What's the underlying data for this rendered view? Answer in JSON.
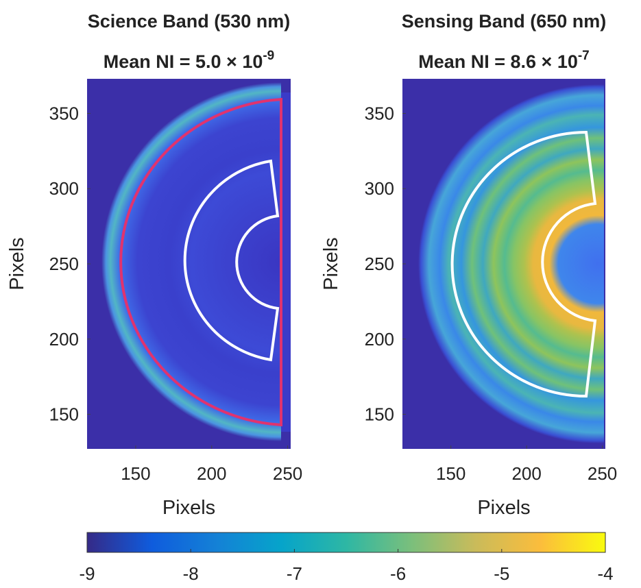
{
  "chart_data": [
    {
      "type": "heatmap",
      "title": "Science Band (530 nm)",
      "subtitle": "Mean NI = 5.0 × 10",
      "subtitle_exponent": "-9",
      "x_label": "Pixels",
      "y_label": "Pixels",
      "xlim": [
        118,
        252
      ],
      "xticks": [
        150,
        200,
        250
      ],
      "ylim": [
        127,
        373
      ],
      "yticks": [
        150,
        200,
        250,
        300,
        350
      ]
    },
    {
      "type": "heatmap",
      "title": "Sensing Band (650 nm)",
      "subtitle": "Mean NI = 8.6 × 10",
      "subtitle_exponent": "-7",
      "x_label": "Pixels",
      "y_label": "Pixels",
      "xlim": [
        118,
        252
      ],
      "xticks": [
        150,
        200,
        250
      ],
      "ylim": [
        127,
        373
      ],
      "yticks": [
        150,
        200,
        250,
        300,
        350
      ]
    },
    {
      "type": "colorbar",
      "xlim": [
        -9,
        -4
      ],
      "xticks": [
        -9,
        -8,
        -7,
        -6,
        -5,
        -4
      ],
      "colors": [
        "#352a87",
        "#0f5cdd",
        "#1481d6",
        "#06a4ca",
        "#2eb7a4",
        "#7abf7c",
        "#cabb5a",
        "#fbbd3c",
        "#f9fb0e"
      ]
    }
  ]
}
